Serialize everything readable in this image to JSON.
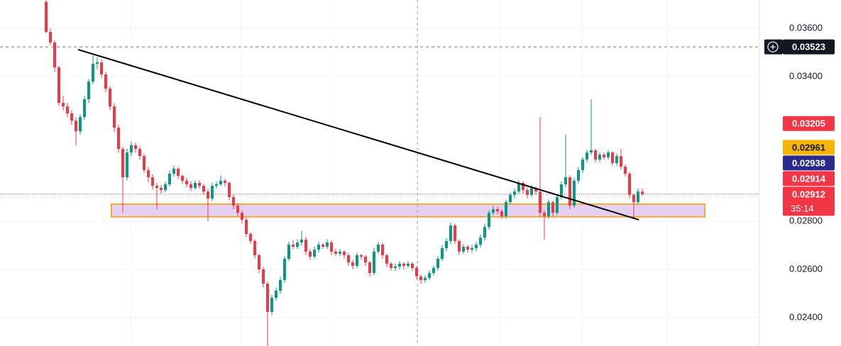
{
  "chart_data": {
    "type": "candlestick",
    "ohlc": [
      [
        0.0371,
        0.03717,
        0.0358,
        0.03585
      ],
      [
        0.03585,
        0.036,
        0.0353,
        0.03541
      ],
      [
        0.03541,
        0.0355,
        0.0342,
        0.03438
      ],
      [
        0.03438,
        0.03445,
        0.0328,
        0.03291
      ],
      [
        0.03291,
        0.0332,
        0.0326,
        0.03276
      ],
      [
        0.03276,
        0.0329,
        0.0323,
        0.03247
      ],
      [
        0.03247,
        0.0326,
        0.032,
        0.03217
      ],
      [
        0.03217,
        0.0323,
        0.03115,
        0.03173
      ],
      [
        0.03173,
        0.03245,
        0.0316,
        0.03232
      ],
      [
        0.03232,
        0.0332,
        0.0322,
        0.03306
      ],
      [
        0.03306,
        0.0339,
        0.0329,
        0.03379
      ],
      [
        0.03379,
        0.03488,
        0.0337,
        0.03453
      ],
      [
        0.03453,
        0.0348,
        0.0343,
        0.03459
      ],
      [
        0.03459,
        0.0347,
        0.03395,
        0.03409
      ],
      [
        0.03409,
        0.0342,
        0.03335,
        0.0335
      ],
      [
        0.0335,
        0.0336,
        0.0326,
        0.03276
      ],
      [
        0.03276,
        0.0329,
        0.0317,
        0.03188
      ],
      [
        0.03188,
        0.032,
        0.03085,
        0.031
      ],
      [
        0.031,
        0.0311,
        0.02835,
        0.02982
      ],
      [
        0.02982,
        0.031,
        0.0297,
        0.03085
      ],
      [
        0.03085,
        0.0313,
        0.0307,
        0.03115
      ],
      [
        0.03115,
        0.03125,
        0.03085,
        0.031
      ],
      [
        0.031,
        0.0311,
        0.03055,
        0.0307
      ],
      [
        0.0307,
        0.0308,
        0.03,
        0.03012
      ],
      [
        0.03012,
        0.03025,
        0.0296,
        0.02982
      ],
      [
        0.02982,
        0.02995,
        0.0293,
        0.02947
      ],
      [
        0.02947,
        0.0296,
        0.0285,
        0.02938
      ],
      [
        0.02938,
        0.0295,
        0.02915,
        0.02929
      ],
      [
        0.02929,
        0.02965,
        0.0292,
        0.02953
      ],
      [
        0.02953,
        0.0301,
        0.02945,
        0.02997
      ],
      [
        0.02997,
        0.0303,
        0.02985,
        0.03018
      ],
      [
        0.03018,
        0.03025,
        0.02975,
        0.02988
      ],
      [
        0.02988,
        0.02995,
        0.02955,
        0.02968
      ],
      [
        0.02968,
        0.0298,
        0.0294,
        0.02953
      ],
      [
        0.02953,
        0.02965,
        0.02925,
        0.02938
      ],
      [
        0.02938,
        0.0297,
        0.0293,
        0.02959
      ],
      [
        0.02959,
        0.0297,
        0.02935,
        0.02947
      ],
      [
        0.02947,
        0.02955,
        0.0291,
        0.02923
      ],
      [
        0.02923,
        0.02935,
        0.028,
        0.02894
      ],
      [
        0.02894,
        0.0296,
        0.02885,
        0.02947
      ],
      [
        0.02947,
        0.02965,
        0.02935,
        0.02953
      ],
      [
        0.02953,
        0.0299,
        0.02945,
        0.02968
      ],
      [
        0.02968,
        0.02975,
        0.02945,
        0.02959
      ],
      [
        0.02959,
        0.02965,
        0.02885,
        0.029
      ],
      [
        0.029,
        0.0291,
        0.0285,
        0.02865
      ],
      [
        0.02865,
        0.02875,
        0.0282,
        0.02835
      ],
      [
        0.02835,
        0.02845,
        0.0279,
        0.02806
      ],
      [
        0.02806,
        0.02815,
        0.02735,
        0.02747
      ],
      [
        0.02747,
        0.02755,
        0.02705,
        0.02718
      ],
      [
        0.02718,
        0.02725,
        0.02645,
        0.02659
      ],
      [
        0.02659,
        0.02665,
        0.02585,
        0.026
      ],
      [
        0.026,
        0.0261,
        0.02525,
        0.02541
      ],
      [
        0.02541,
        0.0255,
        0.02282,
        0.02424
      ],
      [
        0.02424,
        0.02495,
        0.0241,
        0.02482
      ],
      [
        0.02482,
        0.02525,
        0.0247,
        0.02512
      ],
      [
        0.02512,
        0.0257,
        0.025,
        0.02556
      ],
      [
        0.02556,
        0.02655,
        0.02545,
        0.02644
      ],
      [
        0.02644,
        0.02715,
        0.02635,
        0.02703
      ],
      [
        0.02703,
        0.0272,
        0.02685,
        0.02694
      ],
      [
        0.02694,
        0.02725,
        0.02685,
        0.02712
      ],
      [
        0.02712,
        0.0276,
        0.027,
        0.02724
      ],
      [
        0.02724,
        0.02735,
        0.0266,
        0.02674
      ],
      [
        0.02674,
        0.02685,
        0.0264,
        0.02653
      ],
      [
        0.02653,
        0.02695,
        0.02645,
        0.02682
      ],
      [
        0.02682,
        0.02715,
        0.0267,
        0.02703
      ],
      [
        0.02703,
        0.0271,
        0.02685,
        0.02694
      ],
      [
        0.02694,
        0.02725,
        0.02685,
        0.02712
      ],
      [
        0.02712,
        0.0272,
        0.0266,
        0.02674
      ],
      [
        0.02674,
        0.02685,
        0.02655,
        0.02665
      ],
      [
        0.02665,
        0.02685,
        0.02655,
        0.02674
      ],
      [
        0.02674,
        0.0268,
        0.02645,
        0.02659
      ],
      [
        0.02659,
        0.0267,
        0.02615,
        0.02629
      ],
      [
        0.02629,
        0.0264,
        0.026,
        0.02615
      ],
      [
        0.02615,
        0.0267,
        0.02605,
        0.02659
      ],
      [
        0.02659,
        0.02665,
        0.0264,
        0.02653
      ],
      [
        0.02653,
        0.0266,
        0.02615,
        0.02629
      ],
      [
        0.02629,
        0.02635,
        0.0257,
        0.02585
      ],
      [
        0.02585,
        0.0269,
        0.02575,
        0.02674
      ],
      [
        0.02674,
        0.02715,
        0.02665,
        0.02703
      ],
      [
        0.02703,
        0.0271,
        0.02645,
        0.02659
      ],
      [
        0.02659,
        0.02665,
        0.0261,
        0.02624
      ],
      [
        0.02624,
        0.0263,
        0.02595,
        0.02606
      ],
      [
        0.02606,
        0.02625,
        0.02595,
        0.02612
      ],
      [
        0.02612,
        0.02635,
        0.026,
        0.02624
      ],
      [
        0.02624,
        0.0263,
        0.026,
        0.02615
      ],
      [
        0.02615,
        0.02635,
        0.02605,
        0.02624
      ],
      [
        0.02624,
        0.0263,
        0.02595,
        0.02606
      ],
      [
        0.02606,
        0.02615,
        0.0256,
        0.02571
      ],
      [
        0.02571,
        0.0258,
        0.0254,
        0.02556
      ],
      [
        0.02556,
        0.02575,
        0.02545,
        0.02565
      ],
      [
        0.02565,
        0.02595,
        0.02555,
        0.02585
      ],
      [
        0.02585,
        0.02615,
        0.02575,
        0.02606
      ],
      [
        0.02606,
        0.02655,
        0.02595,
        0.02644
      ],
      [
        0.02644,
        0.027,
        0.02635,
        0.02688
      ],
      [
        0.02688,
        0.0273,
        0.02675,
        0.02718
      ],
      [
        0.02718,
        0.02795,
        0.02705,
        0.02782
      ],
      [
        0.02782,
        0.0279,
        0.02705,
        0.02718
      ],
      [
        0.02718,
        0.02725,
        0.0266,
        0.02674
      ],
      [
        0.02674,
        0.02705,
        0.02665,
        0.02694
      ],
      [
        0.02694,
        0.027,
        0.0267,
        0.02682
      ],
      [
        0.02682,
        0.027,
        0.0267,
        0.02688
      ],
      [
        0.02688,
        0.02715,
        0.02675,
        0.02703
      ],
      [
        0.02703,
        0.02745,
        0.0269,
        0.02732
      ],
      [
        0.02732,
        0.0279,
        0.0272,
        0.02776
      ],
      [
        0.02776,
        0.02845,
        0.02765,
        0.02835
      ],
      [
        0.02835,
        0.02865,
        0.02825,
        0.0285
      ],
      [
        0.0285,
        0.0286,
        0.0283,
        0.02841
      ],
      [
        0.02841,
        0.0285,
        0.0281,
        0.02821
      ],
      [
        0.02821,
        0.0289,
        0.0281,
        0.02879
      ],
      [
        0.02879,
        0.0292,
        0.0287,
        0.02909
      ],
      [
        0.02909,
        0.02935,
        0.02895,
        0.02923
      ],
      [
        0.02923,
        0.0297,
        0.02915,
        0.02959
      ],
      [
        0.02959,
        0.02965,
        0.02915,
        0.02929
      ],
      [
        0.02929,
        0.0294,
        0.02895,
        0.02909
      ],
      [
        0.02909,
        0.0295,
        0.029,
        0.02938
      ],
      [
        0.02938,
        0.02945,
        0.0291,
        0.02923
      ],
      [
        0.02923,
        0.03232,
        0.0282,
        0.02835
      ],
      [
        0.02835,
        0.02845,
        0.02724,
        0.02821
      ],
      [
        0.02821,
        0.0289,
        0.0281,
        0.02879
      ],
      [
        0.02879,
        0.02885,
        0.0282,
        0.02835
      ],
      [
        0.02835,
        0.0291,
        0.02825,
        0.029
      ],
      [
        0.029,
        0.02965,
        0.0289,
        0.02953
      ],
      [
        0.02953,
        0.03159,
        0.0294,
        0.02982
      ],
      [
        0.02982,
        0.0299,
        0.0285,
        0.02865
      ],
      [
        0.02865,
        0.0298,
        0.02855,
        0.02968
      ],
      [
        0.02968,
        0.03025,
        0.02955,
        0.03012
      ],
      [
        0.03012,
        0.03065,
        0.03,
        0.03056
      ],
      [
        0.03056,
        0.03095,
        0.03045,
        0.03085
      ],
      [
        0.03085,
        0.03306,
        0.03075,
        0.03094
      ],
      [
        0.03094,
        0.031,
        0.03045,
        0.03056
      ],
      [
        0.03056,
        0.03085,
        0.03045,
        0.03076
      ],
      [
        0.03076,
        0.03085,
        0.03055,
        0.03065
      ],
      [
        0.03065,
        0.03095,
        0.03055,
        0.03085
      ],
      [
        0.03085,
        0.0309,
        0.0303,
        0.03041
      ],
      [
        0.03041,
        0.0308,
        0.0303,
        0.0307
      ],
      [
        0.0307,
        0.031,
        0.03015,
        0.03026
      ],
      [
        0.03026,
        0.03035,
        0.02985,
        0.02997
      ],
      [
        0.02997,
        0.03005,
        0.02895,
        0.02909
      ],
      [
        0.02909,
        0.02915,
        0.0281,
        0.02879
      ],
      [
        0.02879,
        0.02935,
        0.0287,
        0.02923
      ],
      [
        0.02923,
        0.02935,
        0.02905,
        0.02912
      ]
    ],
    "colors": {
      "up": "#089981",
      "down": "#f23645"
    },
    "ylim": [
      0.022824,
      0.037176
    ],
    "yticks": [
      {
        "value": 0.036,
        "label": "0.03600"
      },
      {
        "value": 0.034,
        "label": "0.03400"
      },
      {
        "value": 0.028,
        "label": "0.02800"
      },
      {
        "value": 0.026,
        "label": "0.02600"
      },
      {
        "value": 0.024,
        "label": "0.02400"
      }
    ],
    "grid": true,
    "trendline": {
      "x": [
        7.5,
        139.2
      ],
      "y": [
        0.03512,
        0.02806
      ],
      "color": "#000000"
    },
    "zone": {
      "x": [
        15.3,
        154.7
      ],
      "y": [
        0.02818,
        0.02871
      ],
      "color": "#ff9800",
      "fill": "#e1c8ef"
    },
    "crosshair_x": 87.2,
    "price_labels": [
      {
        "value": 0.03523,
        "label": "0.03523",
        "color": "#131722",
        "text_color": "#ffffff",
        "crosshair": true
      },
      {
        "value": 0.03205,
        "label": "0.03205",
        "color": "#f23645",
        "text_color": "#ffffff"
      },
      {
        "value": 0.02961,
        "label": "0.02961",
        "color": "#f7b500",
        "text_color": "#131722"
      },
      {
        "value": 0.02938,
        "label": "0.02938",
        "color": "#2a2a8c",
        "text_color": "#ffffff"
      },
      {
        "value": 0.02914,
        "label": "0.02914",
        "color": "#f23645",
        "text_color": "#ffffff"
      },
      {
        "value": 0.02912,
        "label": "0.02912",
        "color": "#f23645",
        "text_color": "#ffffff",
        "countdown": "35:14",
        "last": true
      }
    ]
  }
}
